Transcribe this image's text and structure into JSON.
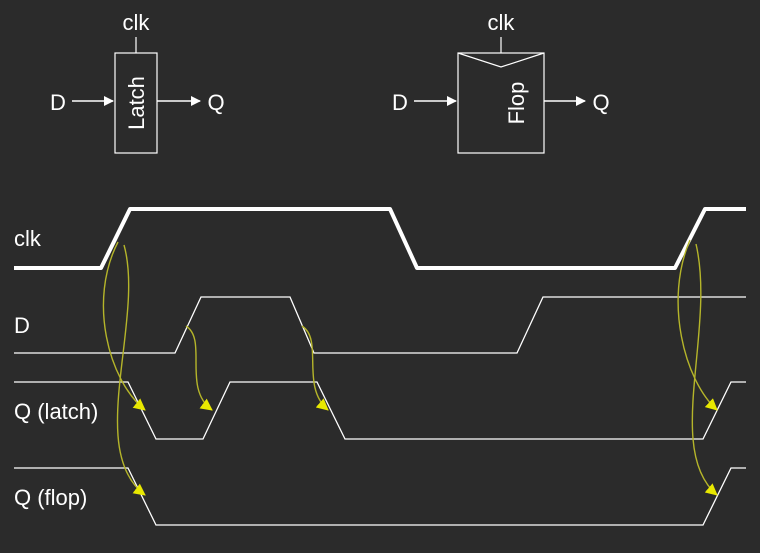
{
  "latch": {
    "clk": "clk",
    "d": "D",
    "name": "Latch",
    "q": "Q"
  },
  "flop": {
    "clk": "clk",
    "d": "D",
    "name": "Flop",
    "q": "Q"
  },
  "signals": {
    "clk": "clk",
    "d": "D",
    "q_latch": "Q (latch)",
    "q_flop": "Q (flop)"
  },
  "colors": {
    "background": "#2b2b2b",
    "line": "#ffffff",
    "arrow": "#e8e800",
    "causality_curve": "#b5b52a"
  }
}
